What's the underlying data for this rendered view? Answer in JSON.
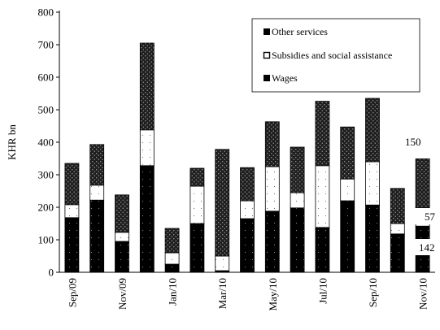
{
  "chart_data": {
    "type": "bar",
    "stacked": true,
    "title": "",
    "xlabel": "",
    "ylabel": "KHR bn",
    "ylim": [
      0,
      800
    ],
    "yticks": [
      "0",
      "100",
      "200",
      "300",
      "400",
      "500",
      "600",
      "700",
      "800"
    ],
    "grid": false,
    "legend_position": "top-right",
    "categories": [
      "Sep/09",
      "Oct/09",
      "Nov/09",
      "Dec/09",
      "Jan/10",
      "Feb/10",
      "Mar/10",
      "Apr/10",
      "May/10",
      "Jun/10",
      "Jul/10",
      "Aug/10",
      "Sep/10",
      "Oct/10",
      "Nov/10"
    ],
    "xtick_labels": [
      "Sep/09",
      "",
      "Nov/09",
      "",
      "Jan/10",
      "",
      "Mar/10",
      "",
      "May/10",
      "",
      "Jul/10",
      "",
      "Sep/10",
      "",
      "Nov/10"
    ],
    "series": [
      {
        "name": "Wages",
        "values": [
          168,
          222,
          95,
          328,
          25,
          150,
          5,
          165,
          188,
          198,
          138,
          220,
          207,
          118,
          142
        ],
        "color": "#000000"
      },
      {
        "name": "Subsidies and social assistance",
        "values": [
          40,
          46,
          28,
          110,
          35,
          115,
          45,
          55,
          137,
          47,
          190,
          67,
          133,
          32,
          57
        ],
        "color": "#ffffff"
      },
      {
        "name": "Other services",
        "values": [
          127,
          125,
          115,
          267,
          75,
          55,
          328,
          102,
          138,
          140,
          198,
          160,
          195,
          108,
          150
        ],
        "color": "#1a1a1a"
      }
    ],
    "annotations": [
      "150",
      "57",
      "142"
    ]
  }
}
